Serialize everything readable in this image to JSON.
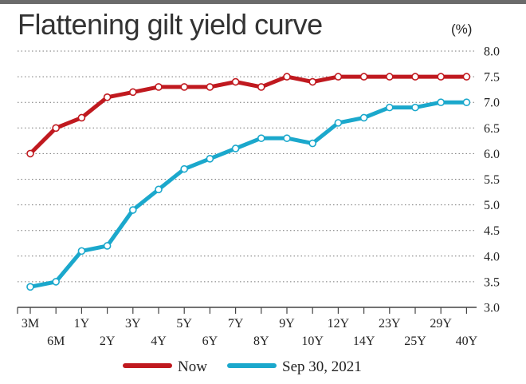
{
  "chart_data": {
    "type": "line",
    "title": "Flattening gilt yield curve",
    "unit": "(%)",
    "x_labels_row1": [
      "3M",
      "1Y",
      "3Y",
      "5Y",
      "7Y",
      "9Y",
      "12Y",
      "23Y",
      "29Y"
    ],
    "x_labels_row2": [
      "6M",
      "2Y",
      "4Y",
      "6Y",
      "8Y",
      "10Y",
      "14Y",
      "25Y",
      "40Y"
    ],
    "y_ticks": [
      "8.0",
      "7.5",
      "7.0",
      "6.5",
      "6.0",
      "5.5",
      "5.0",
      "4.5",
      "4.0",
      "3.5",
      "3.0"
    ],
    "ylim": [
      3.0,
      8.0
    ],
    "grid": true,
    "point_count": 18,
    "series": [
      {
        "name": "Now",
        "color": "#c0191f",
        "values": [
          6.0,
          6.5,
          6.7,
          7.1,
          7.2,
          7.3,
          7.3,
          7.3,
          7.4,
          7.3,
          7.5,
          7.4,
          7.5,
          7.5,
          7.5,
          7.5,
          7.5,
          7.5
        ]
      },
      {
        "name": "Sep 30, 2021",
        "color": "#1ba8cc",
        "values": [
          3.4,
          3.5,
          4.1,
          4.2,
          4.9,
          5.3,
          5.7,
          5.9,
          6.1,
          6.3,
          6.3,
          6.2,
          6.6,
          6.7,
          6.9,
          6.9,
          7.0,
          7.0
        ]
      }
    ]
  }
}
